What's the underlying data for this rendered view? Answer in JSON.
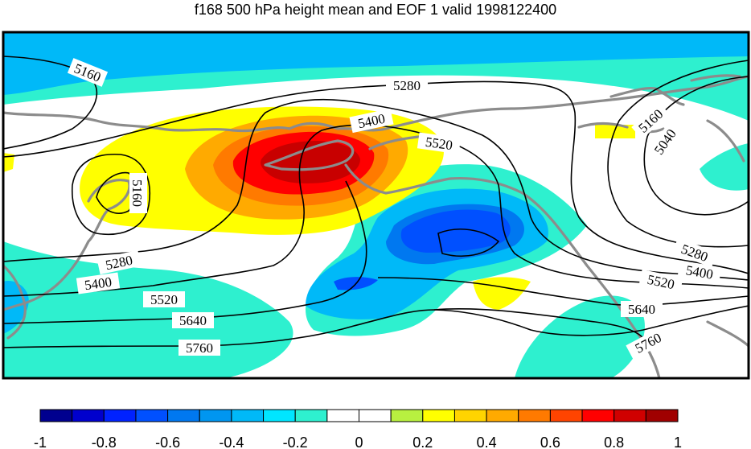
{
  "title": "f168 500 hPa height mean and EOF 1 valid 1998122400",
  "contour_labels": [
    "5160",
    "5280",
    "5400",
    "5520",
    "5160",
    "5160",
    "5040",
    "5280",
    "5400",
    "5520",
    "5640",
    "5760",
    "5280",
    "5400",
    "5520",
    "5640",
    "5760"
  ],
  "colorbar": {
    "tick_labels": [
      "-1",
      "-0.8",
      "-0.6",
      "-0.4",
      "-0.2",
      "0",
      "0.2",
      "0.4",
      "0.6",
      "0.8",
      "1"
    ],
    "colors": [
      "#00008f",
      "#0000cd",
      "#0022ff",
      "#0050ff",
      "#0078f0",
      "#0096f0",
      "#00b9f8",
      "#00e6ff",
      "#2ef0cf",
      "#ffffff",
      "#ffffff",
      "#b8f040",
      "#ffff00",
      "#ffd400",
      "#ffaa00",
      "#ff7a00",
      "#ff4400",
      "#ff0000",
      "#d00000",
      "#a00000"
    ]
  }
}
